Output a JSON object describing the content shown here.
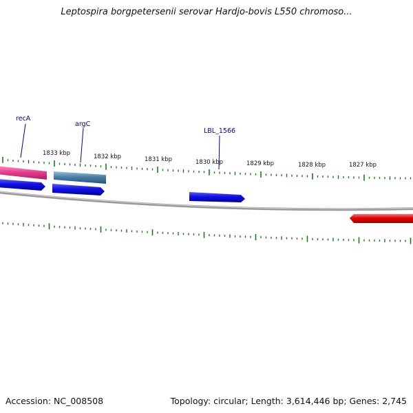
{
  "title": "Leptospira borgpetersenii serovar Hardjo-bovis L550 chromoso...",
  "footer": {
    "accession": "Accession: NC_008508",
    "summary": "Topology: circular; Length: 3,614,446 bp; Genes: 2,745"
  },
  "axis": {
    "unit": "kbp",
    "major_labels": [
      "1833 kbp",
      "1832 kbp",
      "1831 kbp",
      "1830 kbp",
      "1829 kbp",
      "1828 kbp",
      "1827 kbp"
    ]
  },
  "gene_labels": [
    "recA",
    "argC",
    "LBL_1566"
  ],
  "colors": {
    "backbone": "#7a7a7a",
    "tick": "#1a7a1a",
    "label_line": "#00008b",
    "gene_pink": "#e83e8c",
    "gene_steel": "#4a7fa8",
    "gene_blue": "#1010e6",
    "gene_red": "#e60000"
  }
}
